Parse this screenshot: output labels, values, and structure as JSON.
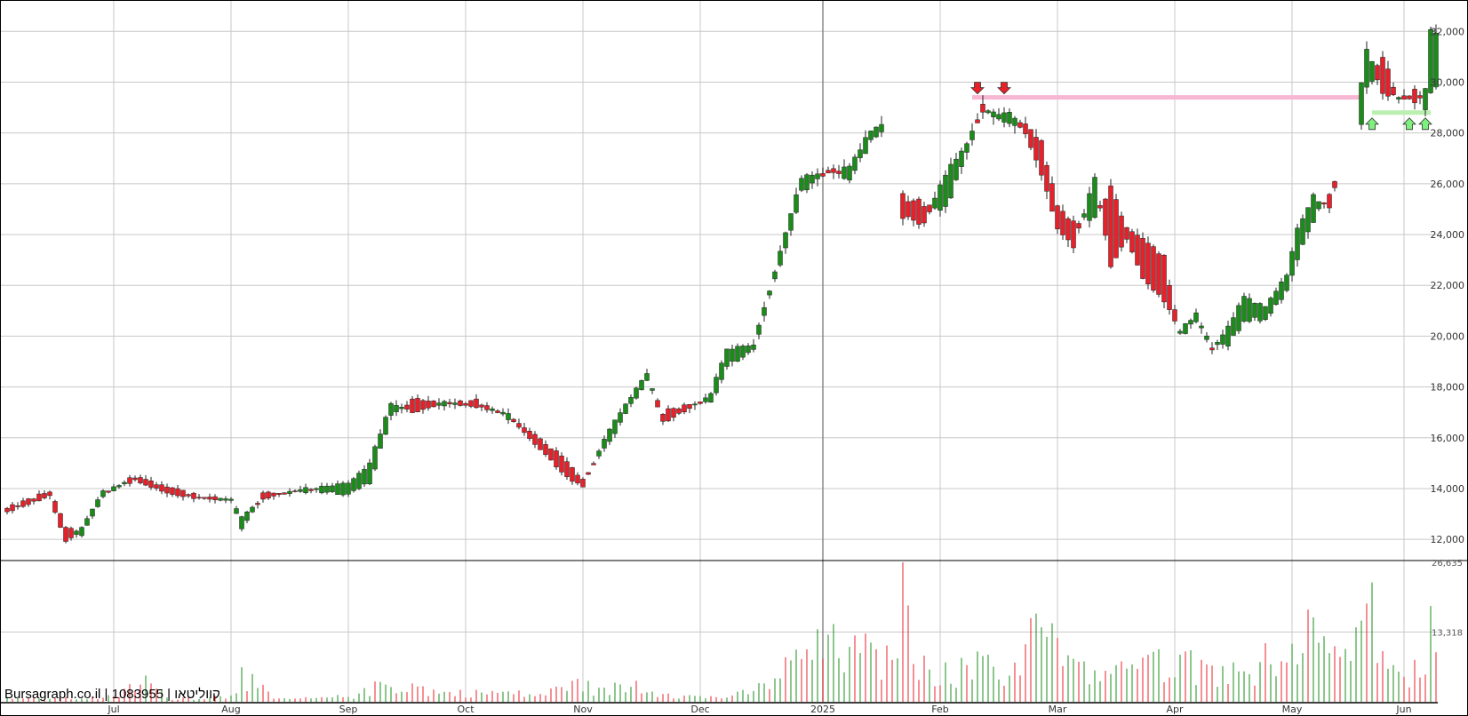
{
  "watermark": "Bursagraph.co.il | 1083955 | קווליטאו",
  "colors": {
    "up": "#1a8c1a",
    "down": "#e8202a",
    "grid": "#c8c8c8",
    "resistance": "#f7b6d2",
    "support": "#b9f0b0"
  },
  "chart_data": {
    "type": "candlestick",
    "title": "",
    "price_axis": {
      "ylim": [
        11200,
        33200
      ],
      "ticks": [
        12000,
        14000,
        16000,
        18000,
        20000,
        22000,
        24000,
        26000,
        28000,
        30000,
        32000
      ],
      "tick_labels": [
        "12,000",
        "14,000",
        "16,000",
        "18,000",
        "20,000",
        "22,000",
        "24,000",
        "26,000",
        "28,000",
        "30,000",
        "32,000"
      ]
    },
    "volume_axis": {
      "ylim": [
        0,
        26635
      ],
      "ticks": [
        13318,
        26635
      ],
      "tick_labels": [
        "13,318",
        "26,635"
      ]
    },
    "x_axis": {
      "tick_labels": [
        "Jul",
        "Aug",
        "Sep",
        "Oct",
        "Nov",
        "Dec",
        "2025",
        "Feb",
        "Mar",
        "Apr",
        "May",
        "Jun"
      ],
      "tick_index": [
        20,
        42,
        64,
        86,
        108,
        130,
        153,
        175,
        197,
        219,
        241,
        262
      ]
    },
    "resistance_line": {
      "y": 29400,
      "from_index": 181,
      "to_index": 254
    },
    "support_line": {
      "y": 28800,
      "from_index": 256,
      "to_index": 267
    },
    "sell_arrows": [
      {
        "index": 182,
        "y": 29400
      },
      {
        "index": 187,
        "y": 29400
      }
    ],
    "buy_arrows": [
      {
        "index": 256,
        "y": 28800
      },
      {
        "index": 263,
        "y": 28800
      },
      {
        "index": 266,
        "y": 28800
      }
    ],
    "ohlc_points": [
      [
        0,
        13200,
        13100
      ],
      [
        8,
        13900,
        13700
      ],
      [
        11,
        12500,
        11900
      ],
      [
        14,
        12100,
        12500
      ],
      [
        18,
        13700,
        13900
      ],
      [
        24,
        14500,
        14300
      ],
      [
        30,
        14100,
        13800
      ],
      [
        36,
        13700,
        13600
      ],
      [
        42,
        13500,
        13600
      ],
      [
        44,
        12400,
        12900
      ],
      [
        48,
        13800,
        13600
      ],
      [
        56,
        13900,
        14000
      ],
      [
        64,
        13800,
        14200
      ],
      [
        68,
        14200,
        15000
      ],
      [
        72,
        16800,
        17400
      ],
      [
        76,
        17500,
        17000
      ],
      [
        82,
        17300,
        17400
      ],
      [
        88,
        17500,
        17200
      ],
      [
        94,
        16800,
        16900
      ],
      [
        100,
        16000,
        15500
      ],
      [
        106,
        14800,
        14300
      ],
      [
        108,
        14300,
        14100
      ],
      [
        112,
        15500,
        16000
      ],
      [
        116,
        17000,
        17300
      ],
      [
        120,
        18300,
        18500
      ],
      [
        123,
        17000,
        16600
      ],
      [
        128,
        17400,
        17100
      ],
      [
        132,
        17300,
        17800
      ],
      [
        135,
        18800,
        19500
      ],
      [
        140,
        19400,
        19700
      ],
      [
        146,
        23600,
        24000
      ],
      [
        149,
        25600,
        26300
      ],
      [
        154,
        26500,
        26500
      ],
      [
        158,
        26300,
        26600
      ],
      [
        162,
        27700,
        28100
      ],
      [
        165,
        28300,
        28400
      ],
      [
        168,
        25500,
        24700
      ],
      [
        172,
        25200,
        24400
      ],
      [
        176,
        25000,
        26400
      ],
      [
        180,
        27200,
        27600
      ],
      [
        183,
        29000,
        28900
      ],
      [
        186,
        28600,
        28700
      ],
      [
        188,
        28400,
        28800
      ],
      [
        191,
        28300,
        28000
      ],
      [
        194,
        27600,
        26400
      ],
      [
        197,
        25000,
        24300
      ],
      [
        200,
        24500,
        23500
      ],
      [
        204,
        24600,
        26300
      ],
      [
        207,
        25800,
        22800
      ],
      [
        210,
        24300,
        23800
      ],
      [
        213,
        23800,
        22300
      ],
      [
        217,
        23100,
        21400
      ],
      [
        220,
        20000,
        20200
      ],
      [
        223,
        20600,
        20900
      ],
      [
        226,
        19600,
        19500
      ],
      [
        229,
        19600,
        20400
      ],
      [
        232,
        20700,
        21500
      ],
      [
        236,
        20600,
        21200
      ],
      [
        240,
        21800,
        22400
      ],
      [
        242,
        23100,
        24200
      ],
      [
        245,
        24600,
        25500
      ],
      [
        248,
        25500,
        25100
      ],
      [
        254,
        28300,
        30000
      ],
      [
        255,
        29800,
        31300
      ],
      [
        258,
        30900,
        29600
      ],
      [
        261,
        29500,
        29300
      ],
      [
        264,
        29700,
        29200
      ],
      [
        266,
        29000,
        29700
      ],
      [
        267,
        29700,
        32000
      ]
    ],
    "volume_points": [
      [
        0,
        900
      ],
      [
        10,
        700
      ],
      [
        20,
        1100
      ],
      [
        26,
        5000
      ],
      [
        30,
        800
      ],
      [
        42,
        1200
      ],
      [
        44,
        6600
      ],
      [
        50,
        600
      ],
      [
        60,
        800
      ],
      [
        66,
        1600
      ],
      [
        70,
        3800
      ],
      [
        76,
        3500
      ],
      [
        82,
        1900
      ],
      [
        88,
        2300
      ],
      [
        94,
        2000
      ],
      [
        100,
        1500
      ],
      [
        106,
        4000
      ],
      [
        112,
        2700
      ],
      [
        118,
        4000
      ],
      [
        124,
        1600
      ],
      [
        130,
        1100
      ],
      [
        136,
        1200
      ],
      [
        142,
        3500
      ],
      [
        146,
        8500
      ],
      [
        150,
        10000
      ],
      [
        154,
        12800
      ],
      [
        158,
        10500
      ],
      [
        162,
        11300
      ],
      [
        166,
        8000
      ],
      [
        168,
        26635
      ],
      [
        170,
        7200
      ],
      [
        176,
        7500
      ],
      [
        180,
        7000
      ],
      [
        184,
        9000
      ],
      [
        188,
        5000
      ],
      [
        192,
        16000
      ],
      [
        196,
        15000
      ],
      [
        200,
        8200
      ],
      [
        204,
        6000
      ],
      [
        208,
        7000
      ],
      [
        212,
        6300
      ],
      [
        216,
        10000
      ],
      [
        220,
        9000
      ],
      [
        224,
        8000
      ],
      [
        228,
        6800
      ],
      [
        232,
        5800
      ],
      [
        236,
        11200
      ],
      [
        240,
        7500
      ],
      [
        244,
        17600
      ],
      [
        248,
        9300
      ],
      [
        252,
        7800
      ],
      [
        254,
        15500
      ],
      [
        256,
        22800
      ],
      [
        258,
        9700
      ],
      [
        260,
        7000
      ],
      [
        262,
        4800
      ],
      [
        264,
        8000
      ],
      [
        266,
        5200
      ],
      [
        267,
        18300
      ]
    ]
  }
}
